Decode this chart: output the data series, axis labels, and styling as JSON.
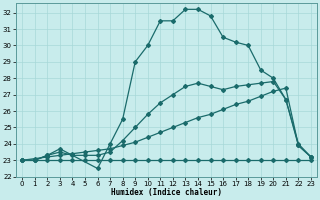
{
  "title": "",
  "xlabel": "Humidex (Indice chaleur)",
  "ylabel": "",
  "bg_color": "#c8ecec",
  "line_color": "#1a6b6b",
  "xlim": [
    -0.5,
    23.5
  ],
  "ylim": [
    22,
    32.6
  ],
  "yticks": [
    22,
    23,
    24,
    25,
    26,
    27,
    28,
    29,
    30,
    31,
    32
  ],
  "xticks": [
    0,
    1,
    2,
    3,
    4,
    5,
    6,
    7,
    8,
    9,
    10,
    11,
    12,
    13,
    14,
    15,
    16,
    17,
    18,
    19,
    20,
    21,
    22,
    23
  ],
  "line1_x": [
    0,
    1,
    2,
    3,
    4,
    5,
    6,
    7,
    8,
    9,
    10,
    11,
    12,
    13,
    14,
    15,
    16,
    17,
    18,
    19,
    20,
    21,
    22,
    23
  ],
  "line1_y": [
    23,
    23,
    23,
    23,
    23,
    23,
    23,
    23,
    23,
    23,
    23,
    23,
    23,
    23,
    23,
    23,
    23,
    23,
    23,
    23,
    23,
    23,
    23,
    23
  ],
  "line2_x": [
    0,
    1,
    2,
    3,
    4,
    5,
    6,
    7,
    8,
    9,
    10,
    11,
    12,
    13,
    14,
    15,
    16,
    17,
    18,
    19,
    20,
    21,
    22,
    23
  ],
  "line2_y": [
    23,
    23.1,
    23.2,
    23.3,
    23.4,
    23.5,
    23.6,
    23.7,
    23.9,
    24.1,
    24.4,
    24.7,
    25.0,
    25.3,
    25.6,
    25.8,
    26.1,
    26.4,
    26.6,
    26.9,
    27.2,
    27.4,
    23.9,
    23.2
  ],
  "line3_x": [
    0,
    1,
    2,
    3,
    4,
    5,
    6,
    7,
    8,
    9,
    10,
    11,
    12,
    13,
    14,
    15,
    16,
    17,
    18,
    19,
    20,
    21,
    22,
    23
  ],
  "line3_y": [
    23,
    23,
    23.3,
    23.5,
    23.3,
    23.3,
    23.3,
    23.5,
    24.2,
    25.0,
    25.8,
    26.5,
    27.0,
    27.5,
    27.7,
    27.5,
    27.3,
    27.5,
    27.6,
    27.7,
    27.8,
    26.7,
    23.9,
    23.2
  ],
  "line4_x": [
    0,
    1,
    2,
    3,
    6,
    7,
    8,
    9,
    10,
    11,
    12,
    13,
    14,
    15,
    16,
    17,
    18,
    19,
    20,
    21,
    22,
    23
  ],
  "line4_y": [
    23,
    23,
    23.3,
    23.7,
    22.5,
    24.0,
    25.5,
    29.0,
    30.0,
    31.5,
    31.5,
    32.2,
    32.2,
    31.8,
    30.5,
    30.2,
    30.0,
    28.5,
    28.0,
    26.7,
    24.0,
    23.2
  ],
  "lw": 0.9,
  "ms": 2.0
}
